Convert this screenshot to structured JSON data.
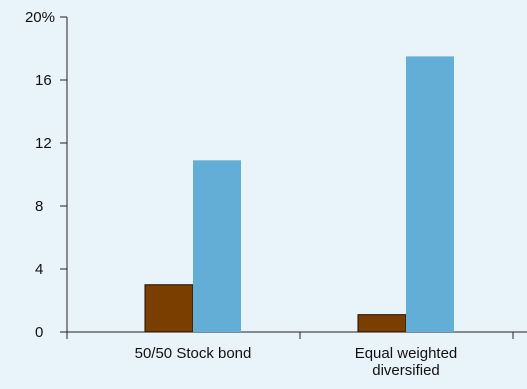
{
  "chart_data": {
    "type": "bar",
    "categories": [
      [
        "50/50 Stock bond"
      ],
      [
        "Equal weighted",
        "diversified"
      ]
    ],
    "series": [
      {
        "values": [
          3.0,
          1.1
        ],
        "color": "#7a3f00"
      },
      {
        "values": [
          10.9,
          17.5
        ],
        "color": "#62aed6"
      }
    ],
    "y_ticks": [
      "0",
      "4",
      "8",
      "12",
      "16",
      "20%"
    ],
    "y_tick_values": [
      0,
      4,
      8,
      12,
      16,
      20
    ],
    "ylim": [
      0,
      20
    ],
    "grid": false,
    "legend": "none",
    "background": "#e9f3fa"
  }
}
